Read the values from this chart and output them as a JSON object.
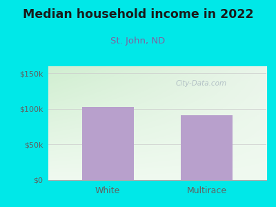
{
  "title": "Median household income in 2022",
  "subtitle": "St. John, ND",
  "categories": [
    "White",
    "Multirace"
  ],
  "values": [
    103000,
    91000
  ],
  "bar_color": "#b8a0cc",
  "ylim": [
    0,
    160000
  ],
  "yticks": [
    0,
    50000,
    100000,
    150000
  ],
  "ytick_labels": [
    "$0",
    "$50k",
    "$100k",
    "$150k"
  ],
  "background_color": "#00e8e8",
  "plot_bg_color_topleft": "#d8eed8",
  "plot_bg_color_topright": "#eef8f0",
  "plot_bg_color_bottom": "#f5fff5",
  "title_color": "#1a1a1a",
  "subtitle_color": "#8060a0",
  "tick_color": "#606060",
  "watermark_text": "City-Data.com",
  "watermark_color": "#aab8c0",
  "title_fontsize": 12.5,
  "subtitle_fontsize": 9.5,
  "tick_fontsize": 8,
  "xlabel_fontsize": 9
}
